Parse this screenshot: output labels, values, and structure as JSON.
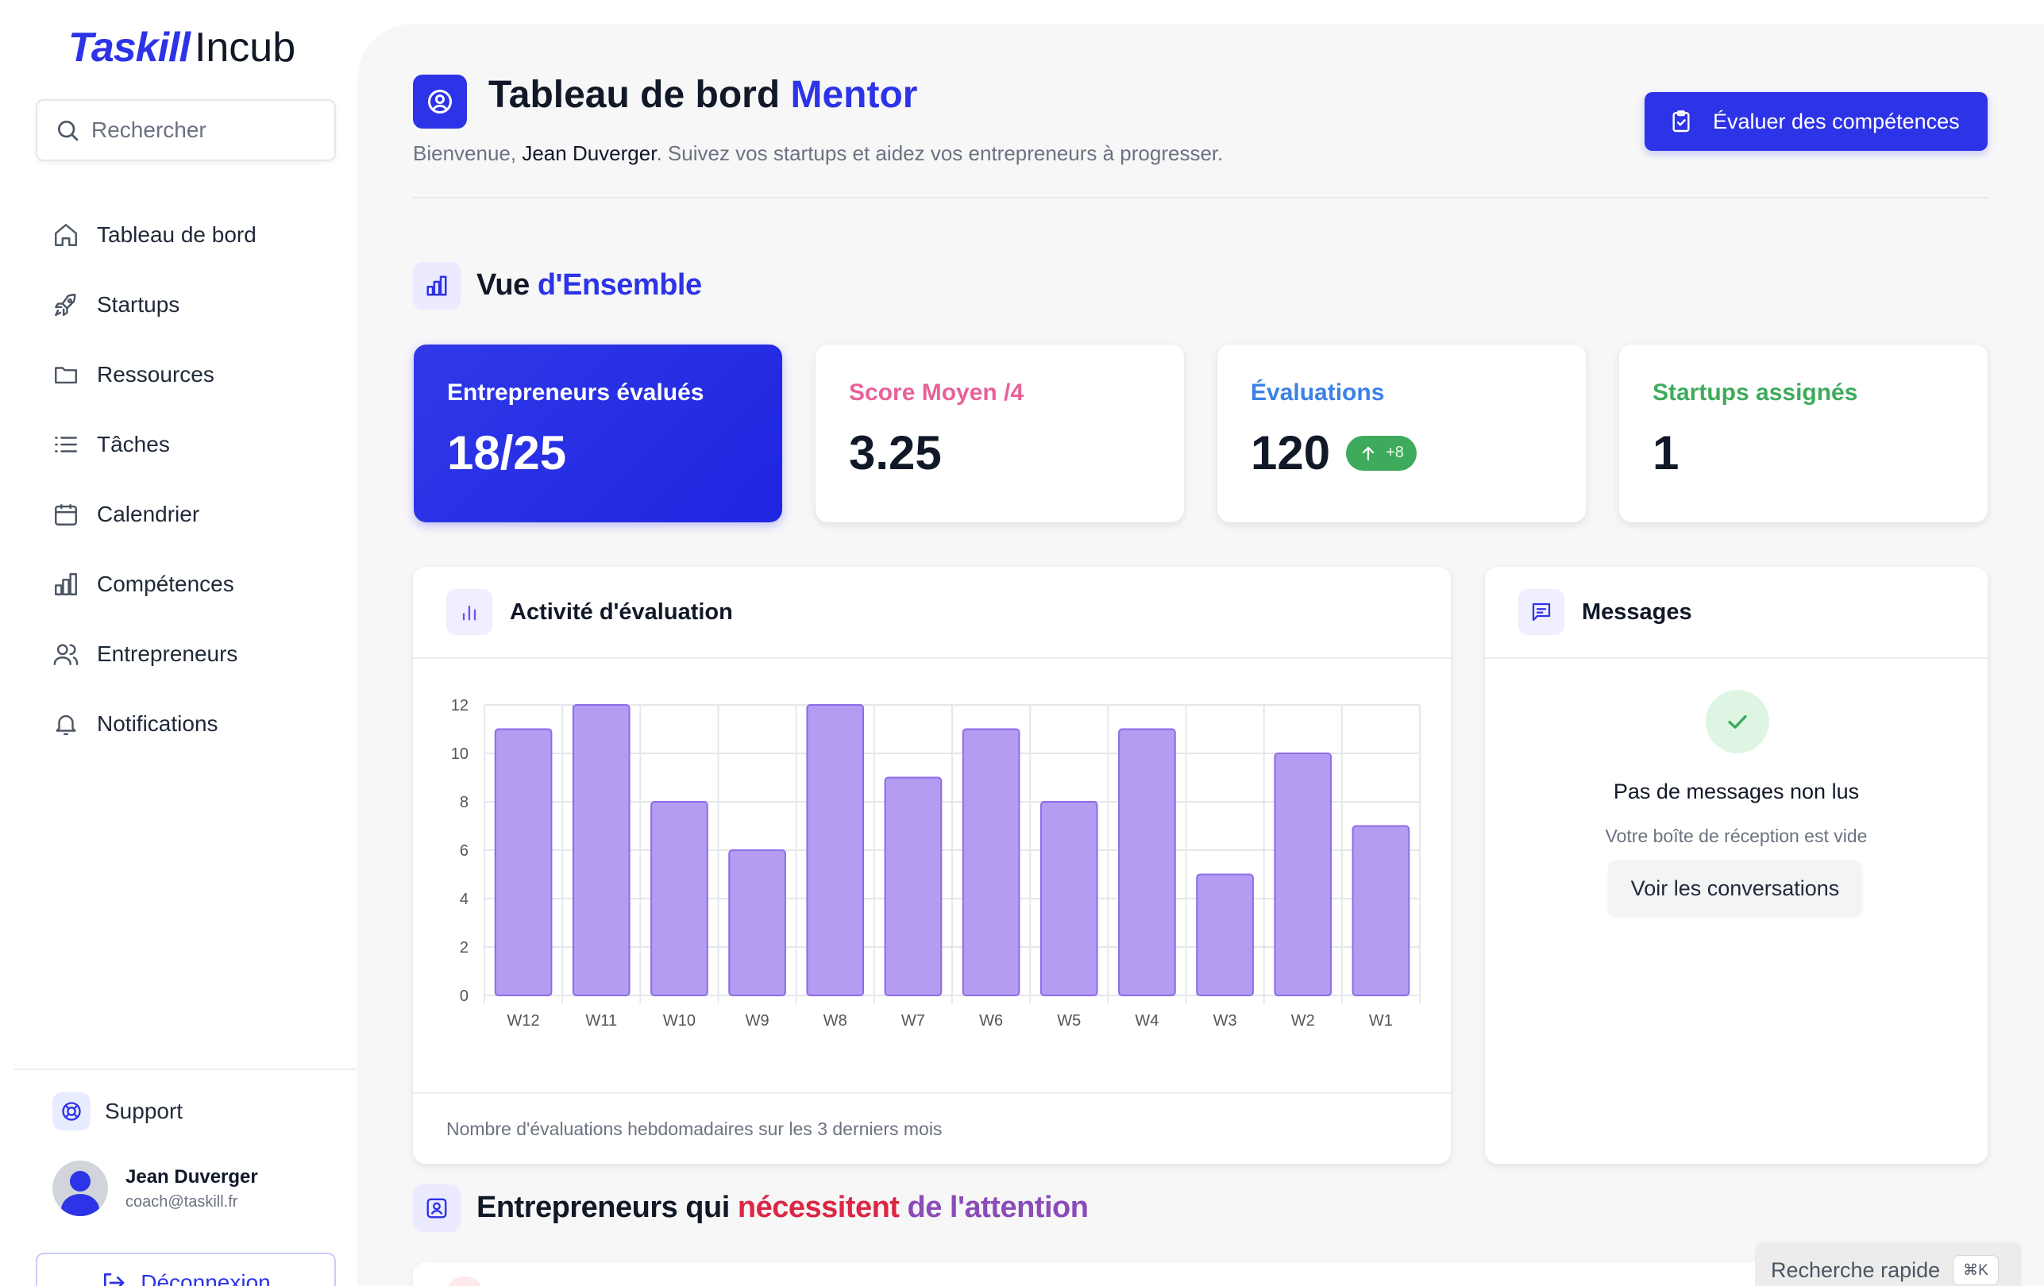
{
  "app": {
    "brand": "Taskill",
    "brand_suffix": "Incub"
  },
  "search": {
    "placeholder": "Rechercher"
  },
  "sidebar": {
    "items": [
      {
        "label": "Tableau de bord",
        "icon": "home-icon"
      },
      {
        "label": "Startups",
        "icon": "rocket-icon"
      },
      {
        "label": "Ressources",
        "icon": "folder-icon"
      },
      {
        "label": "Tâches",
        "icon": "list-icon"
      },
      {
        "label": "Calendrier",
        "icon": "calendar-icon"
      },
      {
        "label": "Compétences",
        "icon": "bar-chart-icon"
      },
      {
        "label": "Entrepreneurs",
        "icon": "users-icon"
      },
      {
        "label": "Notifications",
        "icon": "bell-icon"
      }
    ],
    "support_label": "Support",
    "user": {
      "name": "Jean Duverger",
      "email": "coach@taskill.fr"
    },
    "logout_label": "Déconnexion"
  },
  "header": {
    "title": "Tableau de bord",
    "title_accent": "Mentor",
    "welcome_prefix": "Bienvenue,",
    "welcome_name": "Jean Duverger",
    "welcome_suffix": ". Suivez vos startups et aidez vos entrepreneurs à progresser.",
    "evaluate_button": "Évaluer des compétences"
  },
  "overview": {
    "title": "Vue",
    "title_accent": "d'Ensemble",
    "stats": [
      {
        "label": "Entrepreneurs évalués",
        "value": "18/25",
        "color": "#ffffff"
      },
      {
        "label": "Score Moyen /4",
        "value": "3.25",
        "color": "#e8629a"
      },
      {
        "label": "Évaluations",
        "value": "120",
        "delta": "+8",
        "color": "#3b82e6"
      },
      {
        "label": "Startups assignés",
        "value": "1",
        "color": "#3eab5c"
      }
    ]
  },
  "activity": {
    "title": "Activité d'évaluation",
    "footer": "Nombre d'évaluations hebdomadaires sur les 3 derniers mois"
  },
  "chart_data": {
    "type": "bar",
    "categories": [
      "W12",
      "W11",
      "W10",
      "W9",
      "W8",
      "W7",
      "W6",
      "W5",
      "W4",
      "W3",
      "W2",
      "W1"
    ],
    "values": [
      11,
      12,
      8,
      6,
      12,
      9,
      11,
      8,
      11,
      5,
      10,
      7
    ],
    "ylim": [
      0,
      12
    ],
    "yticks": [
      0,
      2,
      4,
      6,
      8,
      10,
      12
    ],
    "grid": true,
    "bar_color": "#b39cf2",
    "bar_border": "#8b6de8"
  },
  "messages": {
    "title": "Messages",
    "empty_title": "Pas de messages non lus",
    "empty_sub": "Votre boîte de réception est vide",
    "button": "Voir les conversations"
  },
  "attention": {
    "title_prefix": "Entrepreneurs qui",
    "title_red": "nécessitent",
    "title_purple": "de l'attention"
  },
  "quick_search": {
    "label": "Recherche rapide",
    "shortcut": "⌘K"
  },
  "colors": {
    "primary": "#2d33e6",
    "success": "#3eab5c",
    "pink": "#e8629a",
    "blue": "#3b82e6"
  }
}
